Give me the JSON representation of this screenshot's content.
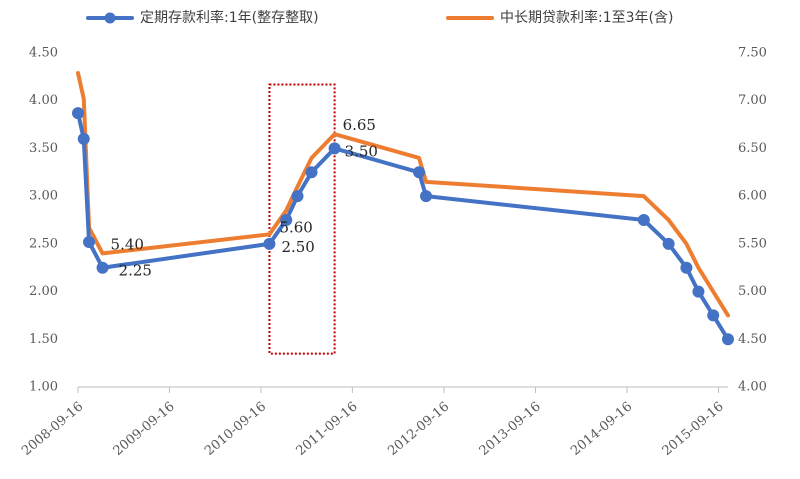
{
  "chart_data": {
    "type": "line",
    "title": "",
    "xlabel": "",
    "ylabel": "",
    "y_left": {
      "ylim": [
        1.0,
        4.5
      ],
      "ticks": [
        "1.00",
        "1.50",
        "2.00",
        "2.50",
        "3.00",
        "3.50",
        "4.00",
        "4.50"
      ]
    },
    "y_right": {
      "ylim": [
        4.0,
        7.5
      ],
      "ticks": [
        "4.00",
        "4.50",
        "5.00",
        "5.50",
        "6.00",
        "6.50",
        "7.00",
        "7.50"
      ]
    },
    "x_range": [
      "2008-09-16",
      "2015-10-24"
    ],
    "x_ticks": [
      "2008-09-16",
      "2009-09-16",
      "2010-09-16",
      "2011-09-16",
      "2012-09-16",
      "2013-09-16",
      "2014-09-16",
      "2015-09-16"
    ],
    "grid": false,
    "legend_position": "top",
    "series": [
      {
        "name": "定期存款利率:1年(整存整取)",
        "axis": "left",
        "color": "#4472C4",
        "markers": true,
        "points": [
          {
            "x": "2008-09-16",
            "y": 3.87
          },
          {
            "x": "2008-10-09",
            "y": 3.6
          },
          {
            "x": "2008-10-30",
            "y": 2.52
          },
          {
            "x": "2008-12-23",
            "y": 2.25
          },
          {
            "x": "2010-10-20",
            "y": 2.5
          },
          {
            "x": "2010-12-26",
            "y": 2.75
          },
          {
            "x": "2011-02-09",
            "y": 3.0
          },
          {
            "x": "2011-04-06",
            "y": 3.25
          },
          {
            "x": "2011-07-07",
            "y": 3.5
          },
          {
            "x": "2012-06-08",
            "y": 3.25
          },
          {
            "x": "2012-07-06",
            "y": 3.0
          },
          {
            "x": "2014-11-22",
            "y": 2.75
          },
          {
            "x": "2015-03-01",
            "y": 2.5
          },
          {
            "x": "2015-05-11",
            "y": 2.25
          },
          {
            "x": "2015-06-28",
            "y": 2.0
          },
          {
            "x": "2015-08-26",
            "y": 1.75
          },
          {
            "x": "2015-10-24",
            "y": 1.5
          }
        ]
      },
      {
        "name": "中长期贷款利率:1至3年(含)",
        "axis": "right",
        "color": "#ED7D31",
        "markers": false,
        "points": [
          {
            "x": "2008-09-16",
            "y": 7.29
          },
          {
            "x": "2008-10-09",
            "y": 7.02
          },
          {
            "x": "2008-10-30",
            "y": 5.67
          },
          {
            "x": "2008-12-23",
            "y": 5.4
          },
          {
            "x": "2010-10-20",
            "y": 5.6
          },
          {
            "x": "2010-12-26",
            "y": 5.85
          },
          {
            "x": "2011-02-09",
            "y": 6.1
          },
          {
            "x": "2011-04-06",
            "y": 6.4
          },
          {
            "x": "2011-07-07",
            "y": 6.65
          },
          {
            "x": "2012-06-08",
            "y": 6.4
          },
          {
            "x": "2012-07-06",
            "y": 6.15
          },
          {
            "x": "2014-11-22",
            "y": 6.0
          },
          {
            "x": "2015-03-01",
            "y": 5.75
          },
          {
            "x": "2015-05-11",
            "y": 5.5
          },
          {
            "x": "2015-06-28",
            "y": 5.25
          },
          {
            "x": "2015-08-26",
            "y": 5.0
          },
          {
            "x": "2015-10-24",
            "y": 4.75
          }
        ]
      }
    ],
    "annotations": [
      {
        "text": "5.40",
        "axis": "right",
        "x": "2008-12-23",
        "y": 5.4,
        "anchor": "above-right"
      },
      {
        "text": "2.25",
        "axis": "left",
        "x": "2008-12-23",
        "y": 2.25,
        "anchor": "right"
      },
      {
        "text": "5.60",
        "axis": "right",
        "x": "2010-10-20",
        "y": 5.6,
        "anchor": "right"
      },
      {
        "text": "2.50",
        "axis": "left",
        "x": "2010-10-20",
        "y": 2.5,
        "anchor": "right"
      },
      {
        "text": "6.65",
        "axis": "right",
        "x": "2011-07-07",
        "y": 6.65,
        "anchor": "right"
      },
      {
        "text": "3.50",
        "axis": "left",
        "x": "2011-07-07",
        "y": 3.5,
        "anchor": "right"
      }
    ],
    "highlight_box": {
      "x_from": "2010-10-20",
      "x_to": "2011-07-07",
      "y_from": 1.35,
      "y_to": 4.17,
      "axis": "left",
      "color": "#C00000",
      "style": "dotted"
    }
  }
}
